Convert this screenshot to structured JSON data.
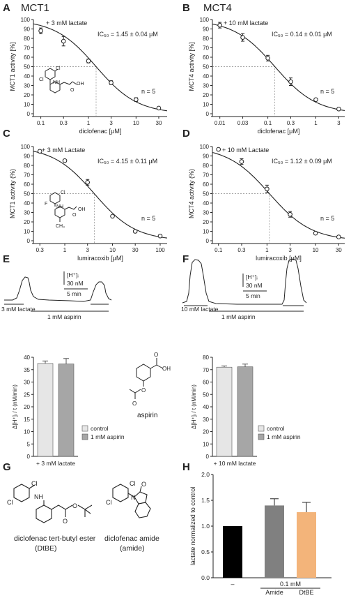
{
  "panels": {
    "A": {
      "letter": "A",
      "title": "MCT1"
    },
    "B": {
      "letter": "B",
      "title": "MCT4"
    },
    "C": {
      "letter": "C"
    },
    "D": {
      "letter": "D"
    },
    "E": {
      "letter": "E"
    },
    "F": {
      "letter": "F"
    },
    "G": {
      "letter": "G"
    },
    "H": {
      "letter": "H"
    }
  },
  "annotations": {
    "A": {
      "condition": "+ 3 mM lactate",
      "ic50": "IC₅₀ = 1.45 ± 0.04 μM",
      "n": "n = 5"
    },
    "B": {
      "condition": "+ 10 mM lactate",
      "ic50": "IC₅₀ = 0.14 ± 0.01 μM",
      "n": "n = 5"
    },
    "C": {
      "condition": "+ 3 mM Lactate",
      "ic50": "IC₅₀ = 4.15 ± 0.11 μM",
      "n": "n = 5"
    },
    "D": {
      "condition": "+ 10 mM Lactate",
      "ic50": "IC₅₀ = 1.12 ± 0.09 μM",
      "n": "n = 5"
    }
  },
  "traces": {
    "E": {
      "scale_y_label": "[H⁺]ᵢ",
      "scale_y_value": "30 nM",
      "scale_x": "5 min",
      "label_lactate": "3 mM lactate",
      "label_aspirin": "1 mM aspirin"
    },
    "F": {
      "scale_y_label": "[H⁺]ᵢ",
      "scale_y_value": "30 nM",
      "scale_x": "5 min",
      "label_lactate": "10 mM lactate",
      "label_aspirin": "1 mM aspirin"
    }
  },
  "structures": {
    "aspirin": "aspirin",
    "dtbe_line1": "diclofenac tert-butyl ester",
    "dtbe_line2": "(DtBE)",
    "amide_line1": "diclofenac amide",
    "amide_line2": "(amide)"
  },
  "colors": {
    "control": "#e6e6e6",
    "aspirin": "#a6a6a6",
    "h_control": "#000000",
    "h_amide": "#808080",
    "h_dtbe": "#f3b47a"
  },
  "chart_data": [
    {
      "id": "A",
      "type": "scatter",
      "fit": "dose-response",
      "xlabel": "diclofenac [μM]",
      "ylabel": "MCT1 activity [%]",
      "xscale": "log",
      "xlim": [
        0.07,
        45
      ],
      "ylim": [
        0,
        100
      ],
      "xticks": [
        0.1,
        0.3,
        1,
        3,
        10,
        30
      ],
      "xticklabels": [
        "0.1",
        "0.3",
        "1",
        "3",
        "10",
        "30"
      ],
      "yticks": [
        0,
        10,
        20,
        30,
        40,
        50,
        60,
        70,
        80,
        90,
        100
      ],
      "ic50": 1.45,
      "x": [
        0.1,
        0.3,
        1,
        3,
        10,
        30
      ],
      "y": [
        88,
        77,
        56,
        33,
        15,
        6
      ],
      "err": [
        3,
        5,
        2,
        2,
        2,
        1
      ]
    },
    {
      "id": "B",
      "type": "scatter",
      "fit": "dose-response",
      "xlabel": "diclofenac [μM]",
      "ylabel": "MCT4 activity [%]",
      "xscale": "log",
      "xlim": [
        0.007,
        4
      ],
      "ylim": [
        0,
        100
      ],
      "xticks": [
        0.01,
        0.03,
        0.1,
        0.3,
        1,
        3
      ],
      "xticklabels": [
        "0.01",
        "0.03",
        "0.1",
        "0.3",
        "1",
        "3"
      ],
      "yticks": [
        0,
        10,
        20,
        30,
        40,
        50,
        60,
        70,
        80,
        90,
        100
      ],
      "ic50": 0.14,
      "x": [
        0.01,
        0.03,
        0.1,
        0.3,
        1,
        3
      ],
      "y": [
        94,
        81,
        59,
        34,
        15,
        5
      ],
      "err": [
        3,
        4,
        3,
        4,
        1,
        1
      ]
    },
    {
      "id": "C",
      "type": "scatter",
      "fit": "dose-response",
      "xlabel": "lumiracoxib [μM]",
      "ylabel": "MCT1 activity (%)",
      "xscale": "log",
      "xlim": [
        0.22,
        140
      ],
      "ylim": [
        0,
        100
      ],
      "xticks": [
        0.3,
        1,
        3,
        10,
        30,
        100
      ],
      "xticklabels": [
        "0.3",
        "1",
        "3",
        "10",
        "30",
        "100"
      ],
      "yticks": [
        0,
        10,
        20,
        30,
        40,
        50,
        60,
        70,
        80,
        90,
        100
      ],
      "ic50": 4.15,
      "x": [
        0.3,
        1,
        3,
        10,
        30,
        100
      ],
      "y": [
        95,
        85,
        62,
        26,
        10,
        5
      ],
      "err": [
        1,
        1,
        3,
        1,
        1,
        1
      ]
    },
    {
      "id": "D",
      "type": "scatter",
      "fit": "dose-response",
      "xlabel": "lumiracoxib [μM]",
      "ylabel": "MCT4 activity (%)",
      "xscale": "log",
      "xlim": [
        0.075,
        40
      ],
      "ylim": [
        0,
        100
      ],
      "xticks": [
        0.1,
        0.3,
        1,
        3,
        10,
        30
      ],
      "xticklabels": [
        "0.1",
        "0.3",
        "1",
        "3",
        "10",
        "30"
      ],
      "yticks": [
        0,
        10,
        20,
        30,
        40,
        50,
        60,
        70,
        80,
        90,
        100
      ],
      "ic50": 1.12,
      "x": [
        0.1,
        0.3,
        1,
        3,
        10,
        30
      ],
      "y": [
        97,
        84,
        55,
        28,
        8,
        4
      ],
      "err": [
        1,
        3,
        4,
        3,
        1,
        1
      ]
    },
    {
      "id": "E",
      "type": "bar",
      "ylabel": "Δ[H⁺]ᵢ / t (nM/min)",
      "xlabel": "+ 3 mM lactate",
      "ylim": [
        0,
        40
      ],
      "yticks": [
        0,
        5,
        10,
        15,
        20,
        25,
        30,
        35,
        40
      ],
      "series": [
        {
          "name": "control",
          "values": [
            37.5
          ],
          "err": [
            1.0
          ]
        },
        {
          "name": "1 mM aspirin",
          "values": [
            37.3
          ],
          "err": [
            2.2
          ]
        }
      ]
    },
    {
      "id": "F",
      "type": "bar",
      "ylabel": "Δ[H⁺]ᵢ / t (nM/min)",
      "xlabel": "+ 10 mM lactate",
      "ylim": [
        0,
        80
      ],
      "yticks": [
        0,
        10,
        20,
        30,
        40,
        50,
        60,
        70,
        80
      ],
      "series": [
        {
          "name": "control",
          "values": [
            72
          ],
          "err": [
            1.0
          ]
        },
        {
          "name": "1 mM aspirin",
          "values": [
            72.3
          ],
          "err": [
            2.2
          ]
        }
      ]
    },
    {
      "id": "H",
      "type": "bar",
      "ylabel": "lactate normalized to control",
      "ylim": [
        0,
        2.0
      ],
      "yticks": [
        0.0,
        0.5,
        1.0,
        1.5,
        2.0
      ],
      "yticklabels": [
        "0.0",
        "0.5",
        "1.0",
        "1.5",
        "2.0"
      ],
      "categories": [
        "–",
        "Amide",
        "DtBE"
      ],
      "group_label": "0.1 mM",
      "values": [
        1.0,
        1.4,
        1.27
      ],
      "err": [
        0,
        0.13,
        0.19
      ]
    }
  ]
}
